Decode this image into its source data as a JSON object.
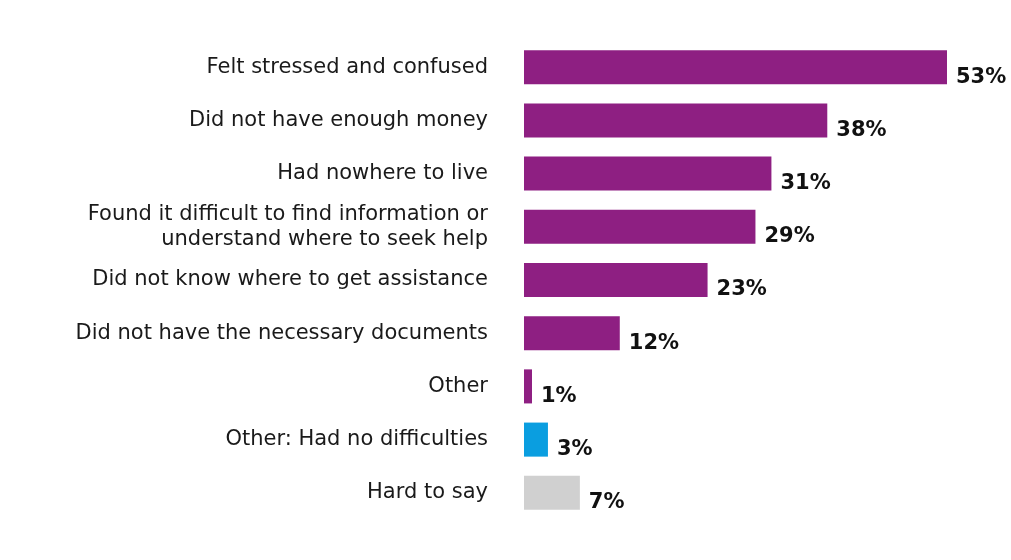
{
  "chart_data": {
    "type": "bar",
    "orientation": "horizontal",
    "categories": [
      "Felt stressed and confused",
      "Did not have enough money",
      "Had nowhere to live",
      "Found it difficult to find information or understand where to seek help",
      "Did not know where to get assistance",
      "Did not have the necessary documents",
      "Other",
      "Other: Had no difficulties",
      "Hard to say"
    ],
    "values": [
      53,
      38,
      31,
      29,
      23,
      12,
      1,
      3,
      7
    ],
    "colors": [
      "#8e1f82",
      "#8e1f82",
      "#8e1f82",
      "#8e1f82",
      "#8e1f82",
      "#8e1f82",
      "#8e1f82",
      "#0a9ee0",
      "#d0d0d0"
    ],
    "value_labels": [
      "53%",
      "38%",
      "31%",
      "29%",
      "23%",
      "12%",
      "1%",
      "3%",
      "7%"
    ],
    "tick_labels": "y"
  }
}
